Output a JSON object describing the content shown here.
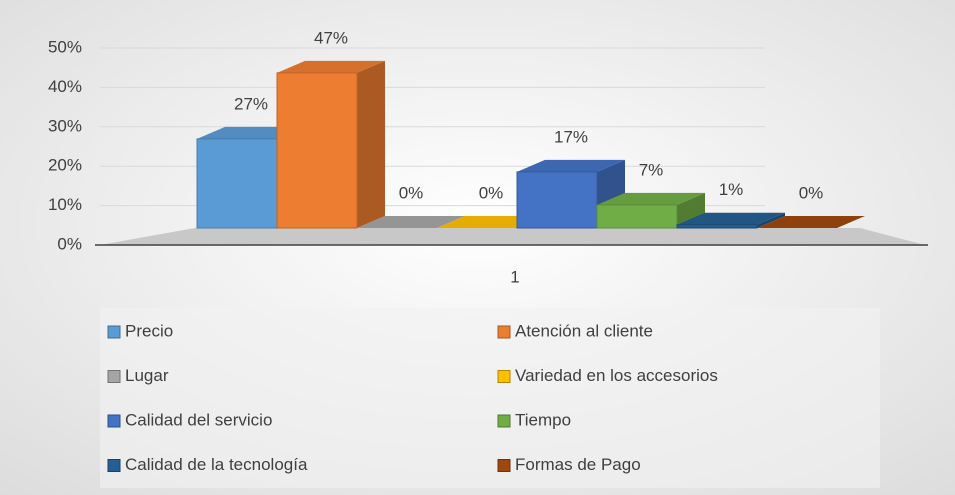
{
  "chart_data": {
    "type": "bar3d",
    "categories": [
      "1"
    ],
    "series": [
      {
        "name": "Precio",
        "color": "#5b9bd5",
        "values": [
          27
        ],
        "value_labels": [
          "27%"
        ]
      },
      {
        "name": "Atención  al cliente",
        "color": "#ed7d31",
        "values": [
          47
        ],
        "value_labels": [
          "47%"
        ]
      },
      {
        "name": "Lugar",
        "color": "#a5a5a5",
        "values": [
          0
        ],
        "value_labels": [
          "0%"
        ]
      },
      {
        "name": "Variedad en los accesorios",
        "color": "#ffc000",
        "values": [
          0
        ],
        "value_labels": [
          "0%"
        ]
      },
      {
        "name": "Calidad del servicio",
        "color": "#4472c4",
        "values": [
          17
        ],
        "value_labels": [
          "17%"
        ]
      },
      {
        "name": "Tiempo",
        "color": "#70ad47",
        "values": [
          7
        ],
        "value_labels": [
          "7%"
        ]
      },
      {
        "name": "Calidad de la tecnología",
        "color": "#255e91",
        "values": [
          1
        ],
        "value_labels": [
          "1%"
        ]
      },
      {
        "name": "Formas de Pago",
        "color": "#9e480e",
        "values": [
          0
        ],
        "value_labels": [
          "0%"
        ]
      }
    ],
    "ylim": [
      0,
      50
    ],
    "yticks": [
      {
        "value": 0,
        "label": "0%"
      },
      {
        "value": 10,
        "label": "10%"
      },
      {
        "value": 20,
        "label": "20%"
      },
      {
        "value": 30,
        "label": "30%"
      },
      {
        "value": 40,
        "label": "40%"
      },
      {
        "value": 50,
        "label": "50%"
      }
    ],
    "grid": true,
    "legend": "bottom"
  }
}
